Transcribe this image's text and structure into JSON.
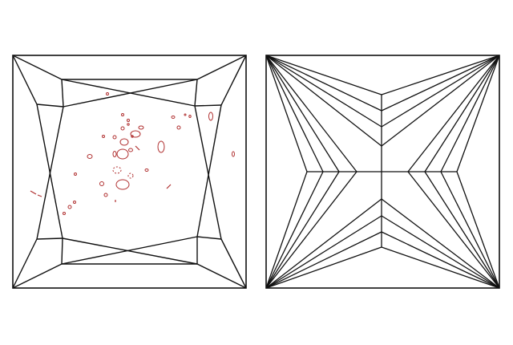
{
  "diagram": {
    "left_panel": {
      "facet_line_color": "#111111",
      "inclusion_color": "#b03030"
    },
    "right_panel": {
      "facet_line_color": "#111111"
    },
    "background_color": "#ffffff"
  }
}
